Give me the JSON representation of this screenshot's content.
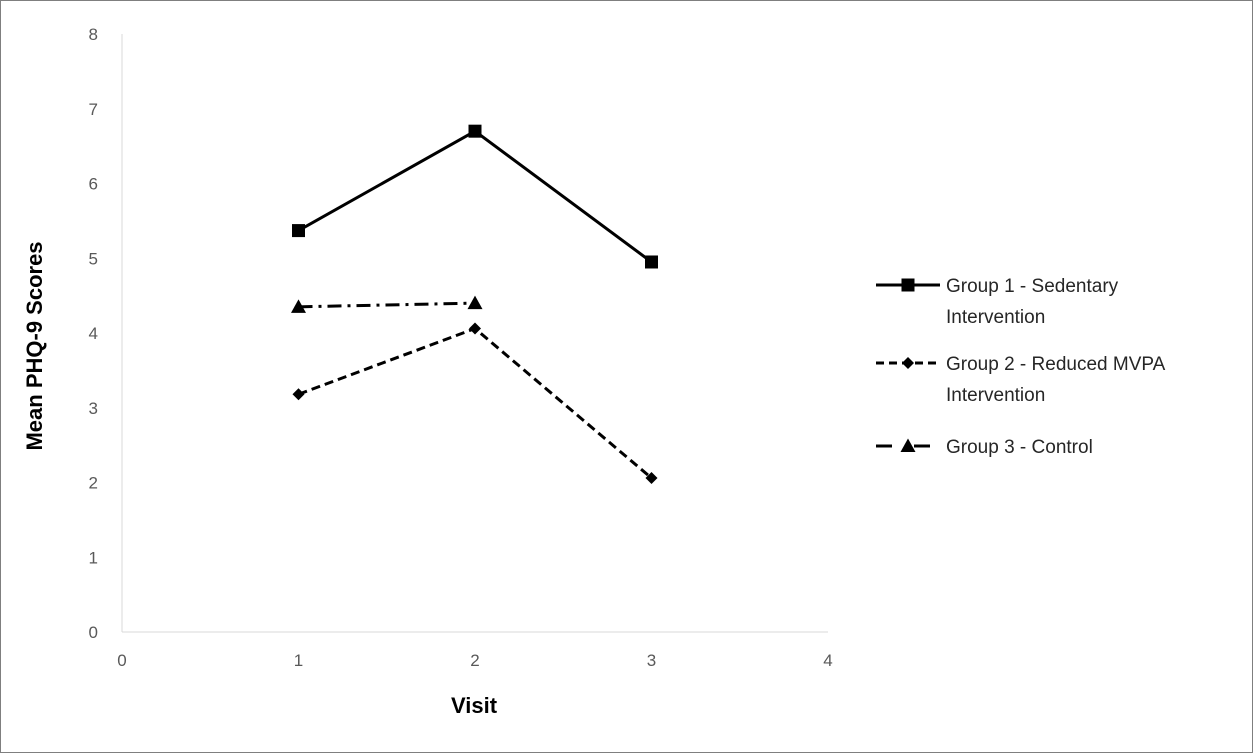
{
  "chart_data": {
    "type": "scatter",
    "title": "",
    "xlabel": "Visit",
    "ylabel": "Mean PHQ-9 Scores",
    "xlim": [
      0,
      4
    ],
    "ylim": [
      0,
      8
    ],
    "xticks": [
      "0",
      "1",
      "2",
      "3",
      "4"
    ],
    "yticks": [
      "0",
      "1",
      "2",
      "3",
      "4",
      "5",
      "6",
      "7",
      "8"
    ],
    "grid": false,
    "legend_position": "right",
    "series": [
      {
        "name": "Group 1 - Sedentary Intervention",
        "legend_lines": [
          "Group 1 - Sedentary",
          "Intervention"
        ],
        "marker": "square",
        "line_style": "solid",
        "color": "#000000",
        "x": [
          1,
          2,
          3
        ],
        "y": [
          5.37,
          6.7,
          4.95
        ]
      },
      {
        "name": "Group 2 - Reduced MVPA Intervention",
        "legend_lines": [
          "Group 2 - Reduced MVPA",
          "Intervention"
        ],
        "marker": "diamond",
        "line_style": "dashed",
        "color": "#000000",
        "x": [
          1,
          2,
          3
        ],
        "y": [
          3.18,
          4.06,
          2.06
        ]
      },
      {
        "name": "Group 3 - Control",
        "legend_lines": [
          "Group 3 - Control"
        ],
        "marker": "triangle",
        "line_style": "dashdot",
        "color": "#000000",
        "x": [
          1,
          2
        ],
        "y": [
          4.35,
          4.4
        ]
      }
    ]
  },
  "colors": {
    "axis": "#d9d9d9",
    "frame": "#7f7f7f",
    "tick_text": "#595959"
  }
}
